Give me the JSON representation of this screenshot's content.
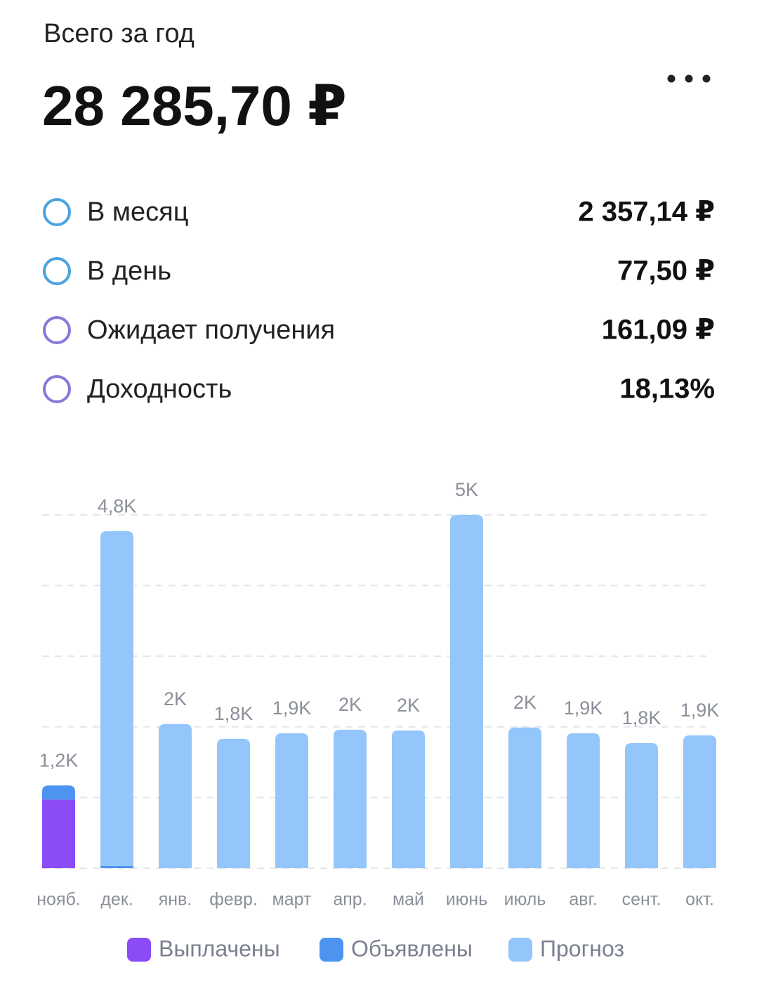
{
  "header": {
    "title": "Всего за год",
    "total": "28 285,70 ₽"
  },
  "stats": [
    {
      "label": "В месяц",
      "value": "2 357,14 ₽"
    },
    {
      "label": "В день",
      "value": "77,50 ₽"
    },
    {
      "label": "Ожидает получения",
      "value": "161,09 ₽"
    },
    {
      "label": "Доходность",
      "value": "18,13%"
    }
  ],
  "chart_data": {
    "type": "bar",
    "stacked": true,
    "categories": [
      "нояб.",
      "дек.",
      "янв.",
      "февр.",
      "март",
      "апр.",
      "май",
      "июнь",
      "июль",
      "авг.",
      "сент.",
      "окт."
    ],
    "series": [
      {
        "name": "Выплачены",
        "color": "#8b4cf7",
        "values": [
          970,
          null,
          null,
          null,
          null,
          null,
          null,
          null,
          null,
          null,
          null,
          null
        ]
      },
      {
        "name": "Объявлены",
        "color": "#4d94f0",
        "values": [
          200,
          30,
          null,
          null,
          null,
          null,
          null,
          null,
          null,
          null,
          null,
          null
        ]
      },
      {
        "name": "Прогноз",
        "color": "#94c6fb",
        "values": [
          null,
          4740,
          2040,
          1830,
          1910,
          1960,
          1950,
          5000,
          1990,
          1910,
          1770,
          1880
        ]
      }
    ],
    "total_labels": [
      "1,2K",
      "4,8K",
      "2K",
      "1,8K",
      "1,9K",
      "2K",
      "2K",
      "5K",
      "2K",
      "1,9K",
      "1,8K",
      "1,9K"
    ],
    "ylim": [
      0,
      5000
    ],
    "yticks": [
      0,
      1000,
      2000,
      3000,
      4000,
      5000
    ],
    "grid": true
  }
}
